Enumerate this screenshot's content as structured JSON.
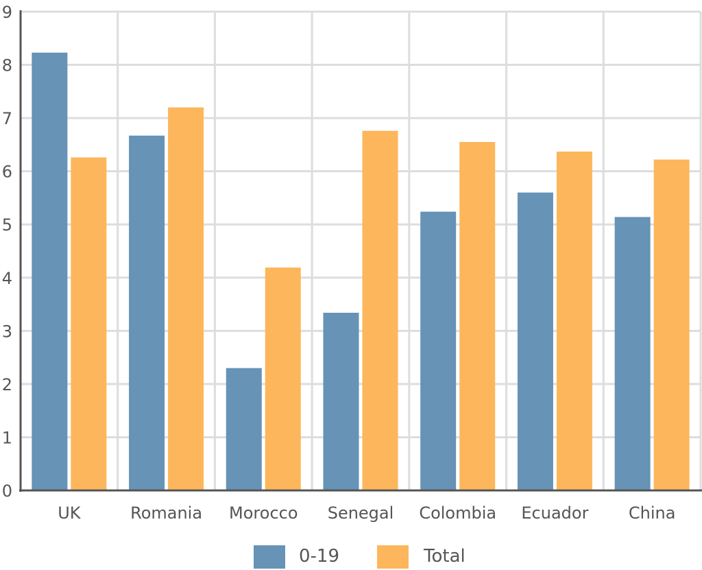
{
  "chart_data": {
    "type": "bar",
    "title": "",
    "xlabel": "",
    "ylabel": "",
    "categories": [
      "UK",
      "Romania",
      "Morocco",
      "Senegal",
      "Colombia",
      "Ecuador",
      "China"
    ],
    "series": [
      {
        "name": "0-19",
        "color": "#6693b6",
        "values": [
          8.23,
          6.67,
          2.3,
          3.34,
          5.24,
          5.6,
          5.14
        ]
      },
      {
        "name": "Total",
        "color": "#fdb65b",
        "values": [
          6.26,
          7.2,
          4.19,
          6.76,
          6.55,
          6.37,
          6.22
        ]
      }
    ],
    "ylim": [
      0,
      9
    ],
    "yticks": [
      "0",
      "1",
      "2",
      "3",
      "4",
      "5",
      "6",
      "7",
      "8",
      "9"
    ],
    "grid": true,
    "legend": "bottom-center"
  }
}
